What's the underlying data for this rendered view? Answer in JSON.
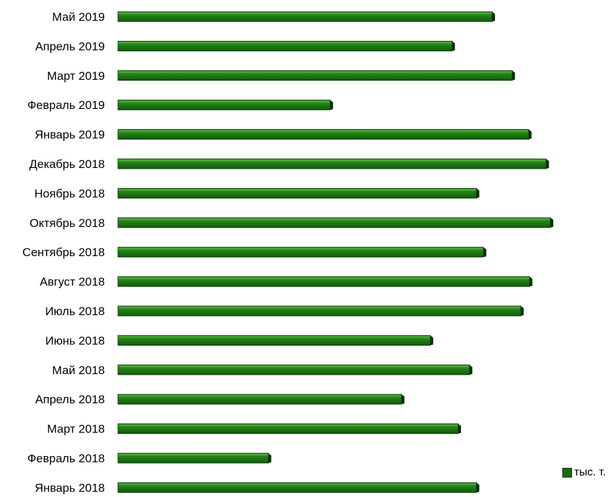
{
  "colors": {
    "bar_fill": "#1f7a14",
    "bar_dark": "#0b3d06",
    "bar_light": "#5fbf4a",
    "text": "#000000"
  },
  "chart_data": {
    "type": "bar",
    "orientation": "horizontal",
    "categories": [
      "Май 2019",
      "Апрель 2019",
      "Март 2019",
      "Февраль 2019",
      "Январь 2019",
      "Декабрь 2018",
      "Ноябрь 2018",
      "Октябрь 2018",
      "Сентябрь 2018",
      "Август 2018",
      "Июль 2018",
      "Июнь 2018",
      "Май 2018",
      "Апрель 2018",
      "Март 2018",
      "Февраль 2018",
      "Январь 2018"
    ],
    "series": [
      {
        "name": "тыс. т.",
        "values": [
          86.6,
          77.4,
          91.2,
          49.4,
          95.0,
          99.0,
          83.0,
          100.0,
          84.6,
          95.2,
          93.2,
          72.4,
          81.4,
          65.8,
          78.8,
          35.2,
          83.0
        ]
      }
    ],
    "xlim": [
      0,
      100
    ],
    "grid": false,
    "legend_position": "bottom-right",
    "title": "",
    "xlabel": "",
    "ylabel": ""
  }
}
